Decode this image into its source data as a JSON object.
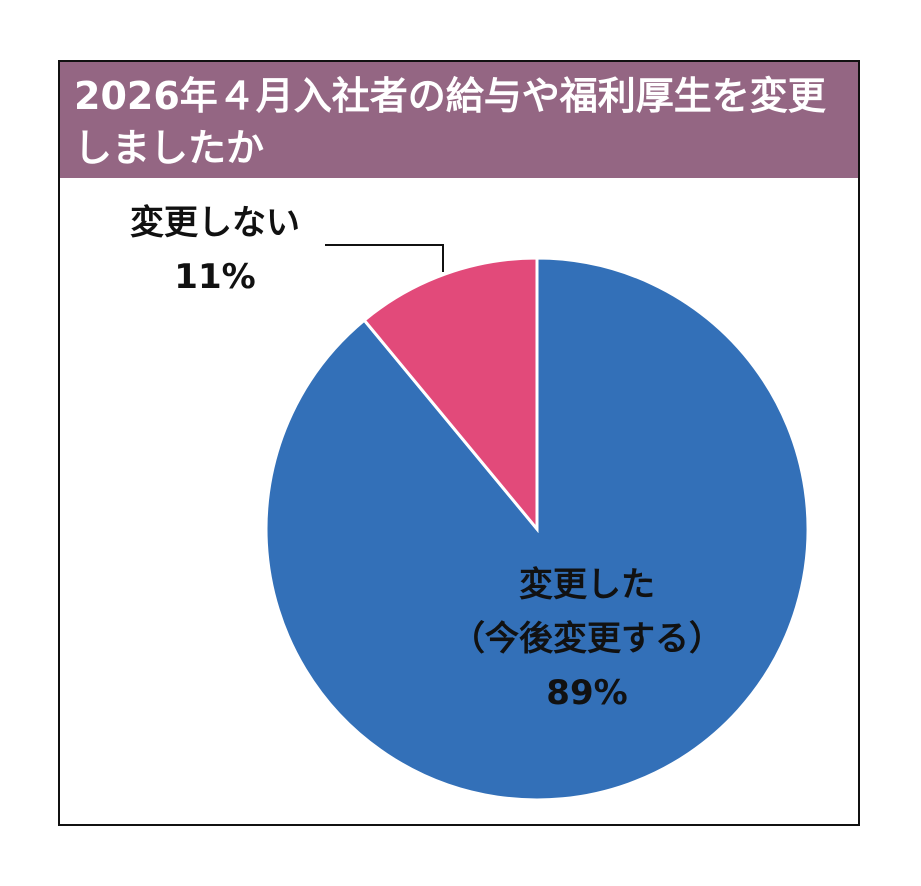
{
  "chart_data": {
    "type": "pie",
    "title": "2026年４月入社者の給与や福利厚生を変更しましたか",
    "categories": [
      "変更した（今後変更する）",
      "変更しない"
    ],
    "values": [
      89,
      11
    ],
    "value_labels": [
      "89%",
      "11%"
    ],
    "colors": [
      "#3370b8",
      "#e24a7a"
    ]
  }
}
